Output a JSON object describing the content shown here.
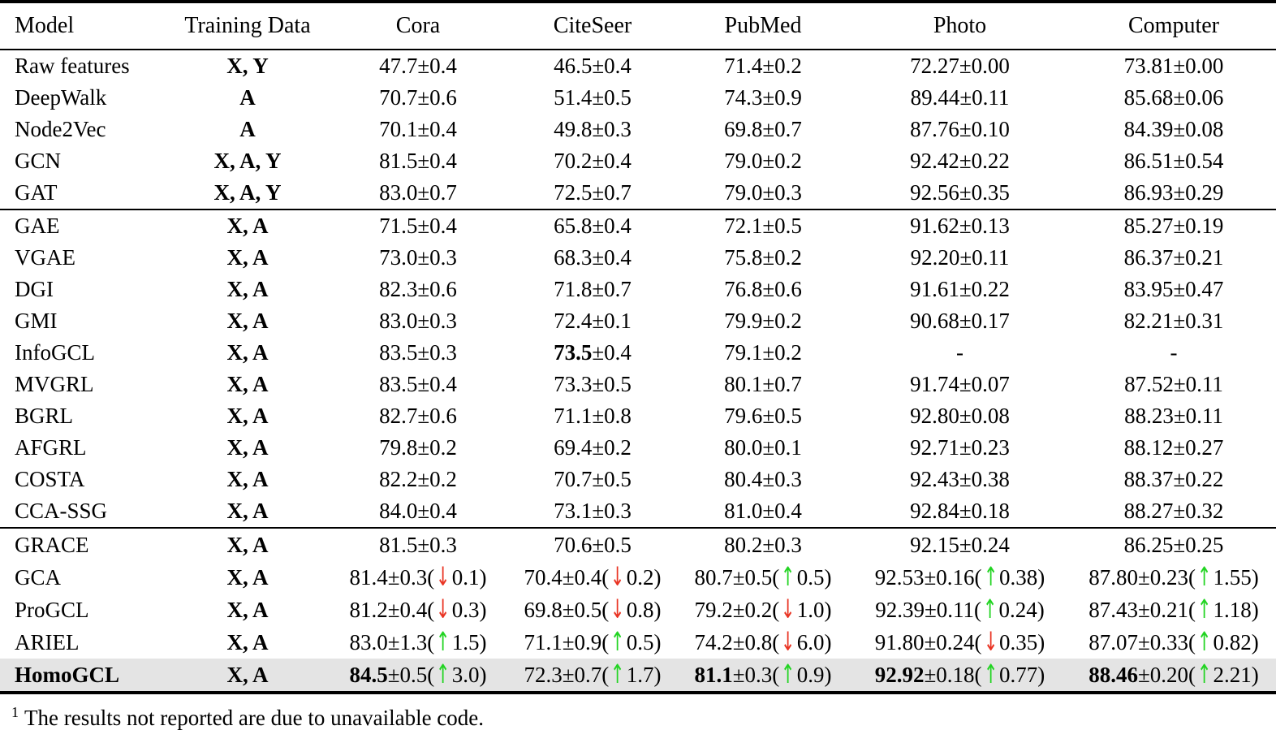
{
  "colors": {
    "up_arrow": "#22d422",
    "down_arrow": "#e93423",
    "highlight_row_bg": "#e4e4e4",
    "rule": "#000000"
  },
  "table": {
    "columns": [
      "Model",
      "Training Data",
      "Cora",
      "CiteSeer",
      "PubMed",
      "Photo",
      "Computer"
    ],
    "sections": [
      {
        "rows": [
          {
            "model": "Raw features",
            "training_data": "X, Y",
            "cells": [
              {
                "score": "47.7",
                "std": "0.4"
              },
              {
                "score": "46.5",
                "std": "0.4"
              },
              {
                "score": "71.4",
                "std": "0.2"
              },
              {
                "score": "72.27",
                "std": "0.00"
              },
              {
                "score": "73.81",
                "std": "0.00"
              }
            ]
          },
          {
            "model": "DeepWalk",
            "training_data": "A",
            "cells": [
              {
                "score": "70.7",
                "std": "0.6"
              },
              {
                "score": "51.4",
                "std": "0.5"
              },
              {
                "score": "74.3",
                "std": "0.9"
              },
              {
                "score": "89.44",
                "std": "0.11"
              },
              {
                "score": "85.68",
                "std": "0.06"
              }
            ]
          },
          {
            "model": "Node2Vec",
            "training_data": "A",
            "cells": [
              {
                "score": "70.1",
                "std": "0.4"
              },
              {
                "score": "49.8",
                "std": "0.3"
              },
              {
                "score": "69.8",
                "std": "0.7"
              },
              {
                "score": "87.76",
                "std": "0.10"
              },
              {
                "score": "84.39",
                "std": "0.08"
              }
            ]
          },
          {
            "model": "GCN",
            "training_data": "X, A, Y",
            "cells": [
              {
                "score": "81.5",
                "std": "0.4"
              },
              {
                "score": "70.2",
                "std": "0.4"
              },
              {
                "score": "79.0",
                "std": "0.2"
              },
              {
                "score": "92.42",
                "std": "0.22"
              },
              {
                "score": "86.51",
                "std": "0.54"
              }
            ]
          },
          {
            "model": "GAT",
            "training_data": "X, A, Y",
            "cells": [
              {
                "score": "83.0",
                "std": "0.7"
              },
              {
                "score": "72.5",
                "std": "0.7"
              },
              {
                "score": "79.0",
                "std": "0.3"
              },
              {
                "score": "92.56",
                "std": "0.35"
              },
              {
                "score": "86.93",
                "std": "0.29"
              }
            ]
          }
        ]
      },
      {
        "rows": [
          {
            "model": "GAE",
            "training_data": "X, A",
            "cells": [
              {
                "score": "71.5",
                "std": "0.4"
              },
              {
                "score": "65.8",
                "std": "0.4"
              },
              {
                "score": "72.1",
                "std": "0.5"
              },
              {
                "score": "91.62",
                "std": "0.13"
              },
              {
                "score": "85.27",
                "std": "0.19"
              }
            ]
          },
          {
            "model": "VGAE",
            "training_data": "X, A",
            "cells": [
              {
                "score": "73.0",
                "std": "0.3"
              },
              {
                "score": "68.3",
                "std": "0.4"
              },
              {
                "score": "75.8",
                "std": "0.2"
              },
              {
                "score": "92.20",
                "std": "0.11"
              },
              {
                "score": "86.37",
                "std": "0.21"
              }
            ]
          },
          {
            "model": "DGI",
            "training_data": "X, A",
            "cells": [
              {
                "score": "82.3",
                "std": "0.6"
              },
              {
                "score": "71.8",
                "std": "0.7"
              },
              {
                "score": "76.8",
                "std": "0.6"
              },
              {
                "score": "91.61",
                "std": "0.22"
              },
              {
                "score": "83.95",
                "std": "0.47"
              }
            ]
          },
          {
            "model": "GMI",
            "training_data": "X, A",
            "cells": [
              {
                "score": "83.0",
                "std": "0.3"
              },
              {
                "score": "72.4",
                "std": "0.1"
              },
              {
                "score": "79.9",
                "std": "0.2"
              },
              {
                "score": "90.68",
                "std": "0.17"
              },
              {
                "score": "82.21",
                "std": "0.31"
              }
            ]
          },
          {
            "model": "InfoGCL",
            "training_data": "X, A",
            "cells": [
              {
                "score": "83.5",
                "std": "0.3"
              },
              {
                "score": "73.5",
                "std": "0.4",
                "bold": true
              },
              {
                "score": "79.1",
                "std": "0.2"
              },
              {
                "missing": true
              },
              {
                "missing": true
              }
            ]
          },
          {
            "model": "MVGRL",
            "training_data": "X, A",
            "cells": [
              {
                "score": "83.5",
                "std": "0.4"
              },
              {
                "score": "73.3",
                "std": "0.5"
              },
              {
                "score": "80.1",
                "std": "0.7"
              },
              {
                "score": "91.74",
                "std": "0.07"
              },
              {
                "score": "87.52",
                "std": "0.11"
              }
            ]
          },
          {
            "model": "BGRL",
            "training_data": "X, A",
            "cells": [
              {
                "score": "82.7",
                "std": "0.6"
              },
              {
                "score": "71.1",
                "std": "0.8"
              },
              {
                "score": "79.6",
                "std": "0.5"
              },
              {
                "score": "92.80",
                "std": "0.08"
              },
              {
                "score": "88.23",
                "std": "0.11"
              }
            ]
          },
          {
            "model": "AFGRL",
            "training_data": "X, A",
            "cells": [
              {
                "score": "79.8",
                "std": "0.2"
              },
              {
                "score": "69.4",
                "std": "0.2"
              },
              {
                "score": "80.0",
                "std": "0.1"
              },
              {
                "score": "92.71",
                "std": "0.23"
              },
              {
                "score": "88.12",
                "std": "0.27"
              }
            ]
          },
          {
            "model": "COSTA",
            "training_data": "X, A",
            "cells": [
              {
                "score": "82.2",
                "std": "0.2"
              },
              {
                "score": "70.7",
                "std": "0.5"
              },
              {
                "score": "80.4",
                "std": "0.3"
              },
              {
                "score": "92.43",
                "std": "0.38"
              },
              {
                "score": "88.37",
                "std": "0.22"
              }
            ]
          },
          {
            "model": "CCA-SSG",
            "training_data": "X, A",
            "cells": [
              {
                "score": "84.0",
                "std": "0.4"
              },
              {
                "score": "73.1",
                "std": "0.3"
              },
              {
                "score": "81.0",
                "std": "0.4"
              },
              {
                "score": "92.84",
                "std": "0.18"
              },
              {
                "score": "88.27",
                "std": "0.32"
              }
            ]
          }
        ]
      },
      {
        "rows": [
          {
            "model": "GRACE",
            "training_data": "X, A",
            "cells": [
              {
                "score": "81.5",
                "std": "0.3"
              },
              {
                "score": "70.6",
                "std": "0.5"
              },
              {
                "score": "80.2",
                "std": "0.3"
              },
              {
                "score": "92.15",
                "std": "0.24"
              },
              {
                "score": "86.25",
                "std": "0.25"
              }
            ]
          },
          {
            "model": "GCA",
            "training_data": "X, A",
            "cells": [
              {
                "score": "81.4",
                "std": "0.3",
                "change": {
                  "dir": "down",
                  "val": "0.1"
                }
              },
              {
                "score": "70.4",
                "std": "0.4",
                "change": {
                  "dir": "down",
                  "val": "0.2"
                }
              },
              {
                "score": "80.7",
                "std": "0.5",
                "change": {
                  "dir": "up",
                  "val": "0.5"
                }
              },
              {
                "score": "92.53",
                "std": "0.16",
                "change": {
                  "dir": "up",
                  "val": "0.38"
                }
              },
              {
                "score": "87.80",
                "std": "0.23",
                "change": {
                  "dir": "up",
                  "val": "1.55"
                }
              }
            ]
          },
          {
            "model": "ProGCL",
            "training_data": "X, A",
            "cells": [
              {
                "score": "81.2",
                "std": "0.4",
                "change": {
                  "dir": "down",
                  "val": "0.3"
                }
              },
              {
                "score": "69.8",
                "std": "0.5",
                "change": {
                  "dir": "down",
                  "val": "0.8"
                }
              },
              {
                "score": "79.2",
                "std": "0.2",
                "change": {
                  "dir": "down",
                  "val": "1.0"
                }
              },
              {
                "score": "92.39",
                "std": "0.11",
                "change": {
                  "dir": "up",
                  "val": "0.24"
                }
              },
              {
                "score": "87.43",
                "std": "0.21",
                "change": {
                  "dir": "up",
                  "val": "1.18"
                }
              }
            ]
          },
          {
            "model": "ARIEL",
            "training_data": "X, A",
            "cells": [
              {
                "score": "83.0",
                "std": "1.3",
                "change": {
                  "dir": "up",
                  "val": "1.5"
                }
              },
              {
                "score": "71.1",
                "std": "0.9",
                "change": {
                  "dir": "up",
                  "val": "0.5"
                }
              },
              {
                "score": "74.2",
                "std": "0.8",
                "change": {
                  "dir": "down",
                  "val": "6.0"
                }
              },
              {
                "score": "91.80",
                "std": "0.24",
                "change": {
                  "dir": "down",
                  "val": "0.35"
                }
              },
              {
                "score": "87.07",
                "std": "0.33",
                "change": {
                  "dir": "up",
                  "val": "0.82"
                }
              }
            ]
          },
          {
            "model": "HomoGCL",
            "bold_model": true,
            "highlight": true,
            "training_data": "X, A",
            "cells": [
              {
                "score": "84.5",
                "std": "0.5",
                "bold": true,
                "change": {
                  "dir": "up",
                  "val": "3.0"
                }
              },
              {
                "score": "72.3",
                "std": "0.7",
                "change": {
                  "dir": "up",
                  "val": "1.7"
                }
              },
              {
                "score": "81.1",
                "std": "0.3",
                "bold": true,
                "change": {
                  "dir": "up",
                  "val": "0.9"
                }
              },
              {
                "score": "92.92",
                "std": "0.18",
                "bold": true,
                "change": {
                  "dir": "up",
                  "val": "0.77"
                }
              },
              {
                "score": "88.46",
                "std": "0.20",
                "bold": true,
                "change": {
                  "dir": "up",
                  "val": "2.21"
                }
              }
            ]
          }
        ]
      }
    ]
  },
  "footnote": {
    "marker": "1",
    "text": "The results not reported are due to unavailable code."
  }
}
